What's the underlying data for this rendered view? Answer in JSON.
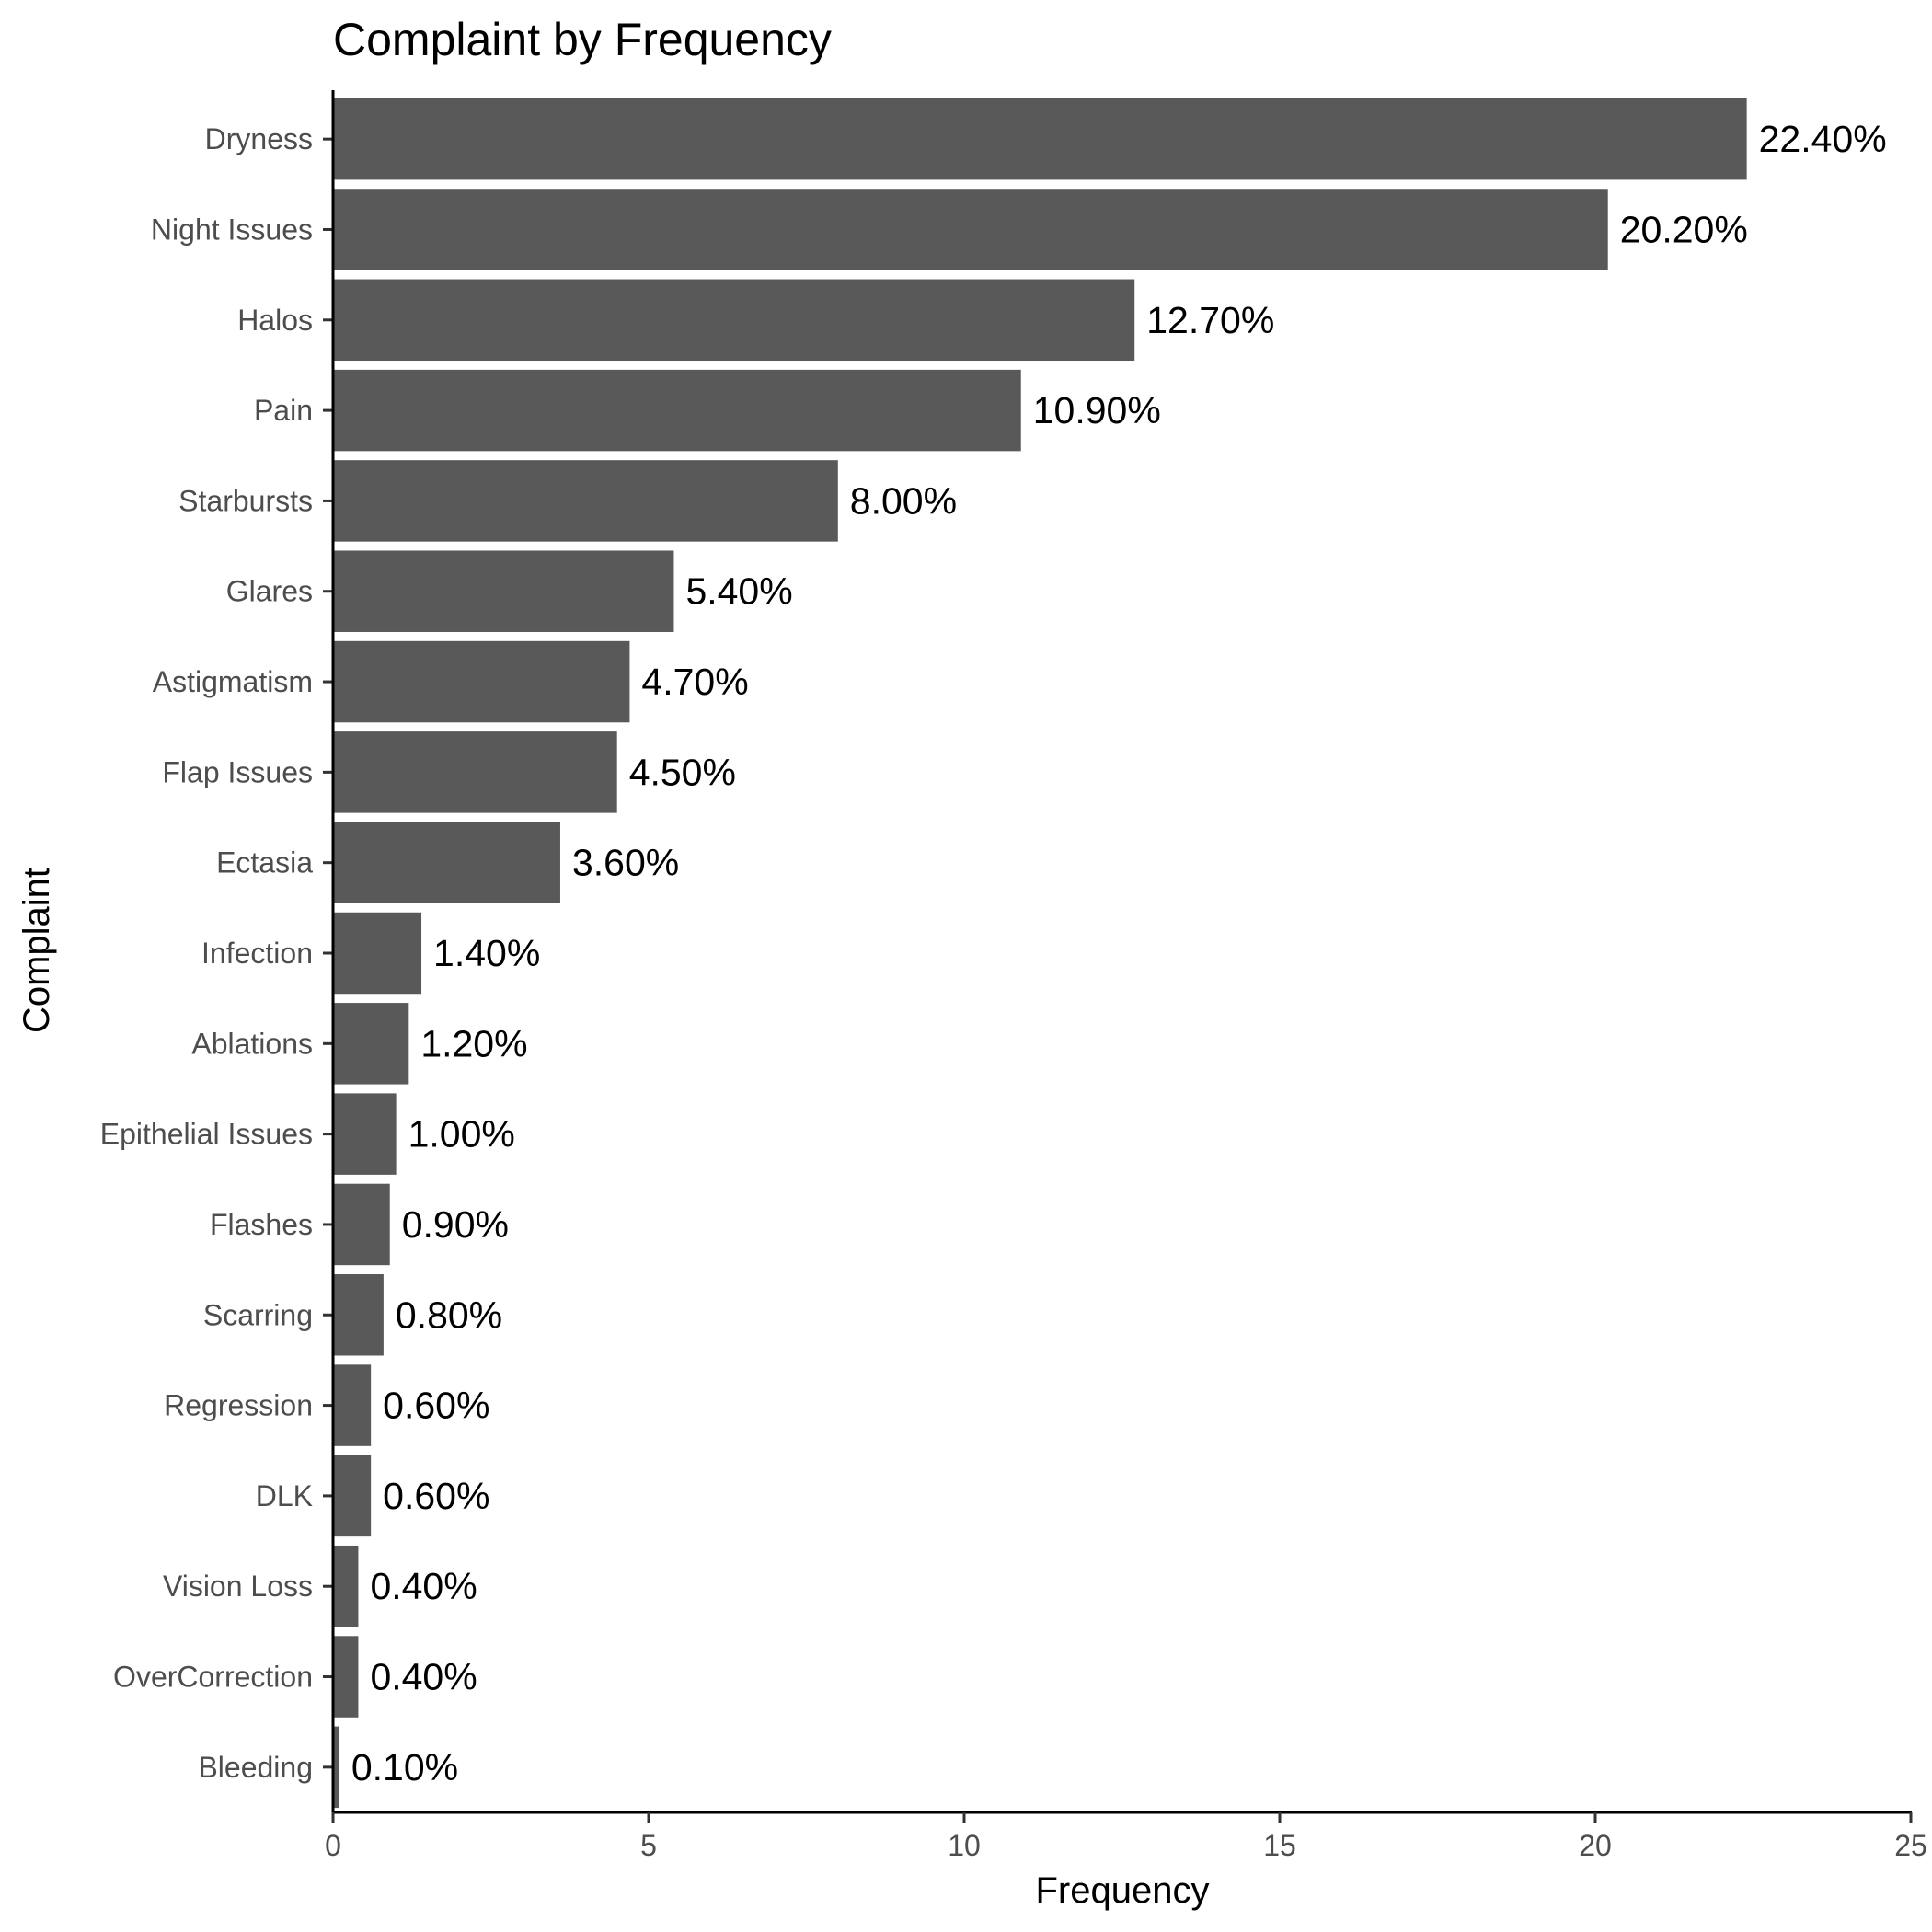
{
  "chart_data": {
    "type": "bar",
    "orientation": "horizontal",
    "title": "Complaint by Frequency",
    "xlabel": "Frequency",
    "ylabel": "Complaint",
    "xlim": [
      0,
      25
    ],
    "x_ticks": [
      0,
      5,
      10,
      15,
      20,
      25
    ],
    "grid": false,
    "legend": "none",
    "bar_color": "#595959",
    "categories": [
      "Dryness",
      "Night Issues",
      "Halos",
      "Pain",
      "Starbursts",
      "Glares",
      "Astigmatism",
      "Flap Issues",
      "Ectasia",
      "Infection",
      "Ablations",
      "Epithelial Issues",
      "Flashes",
      "Scarring",
      "Regression",
      "DLK",
      "Vision Loss",
      "OverCorrection",
      "Bleeding"
    ],
    "values": [
      22.4,
      20.2,
      12.7,
      10.9,
      8.0,
      5.4,
      4.7,
      4.5,
      3.6,
      1.4,
      1.2,
      1.0,
      0.9,
      0.8,
      0.6,
      0.6,
      0.4,
      0.4,
      0.1
    ],
    "data_labels": [
      "22.40%",
      "20.20%",
      "12.70%",
      "10.90%",
      "8.00%",
      "5.40%",
      "4.70%",
      "4.50%",
      "3.60%",
      "1.40%",
      "1.20%",
      "1.00%",
      "0.90%",
      "0.80%",
      "0.60%",
      "0.60%",
      "0.40%",
      "0.40%",
      "0.10%"
    ]
  }
}
